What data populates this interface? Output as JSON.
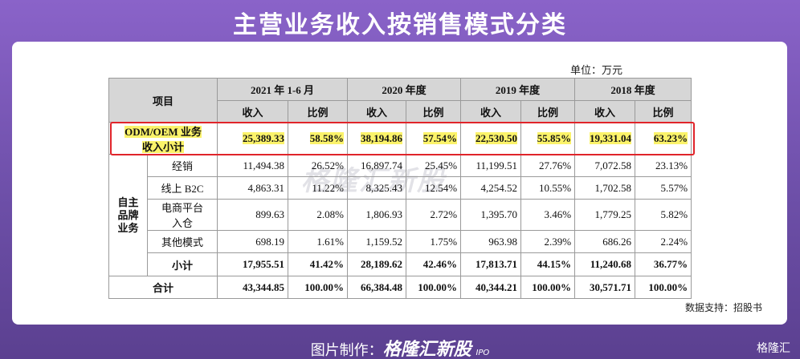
{
  "title": "主营业务收入按销售模式分类",
  "unit": "单位：万元",
  "table": {
    "item_header": "项目",
    "periods": [
      "2021 年 1-6 月",
      "2020 年度",
      "2019 年度",
      "2018 年度"
    ],
    "subheaders": [
      "收入",
      "比例",
      "收入",
      "比例",
      "收入",
      "比例",
      "收入",
      "比例"
    ],
    "odm_row": {
      "label_lines": [
        "ODM/OEM 业务",
        "收入小计"
      ],
      "cells": [
        "25,389.33",
        "58.58%",
        "38,194.86",
        "57.54%",
        "22,530.50",
        "55.85%",
        "19,331.04",
        "63.23%"
      ]
    },
    "brand_group": "自主品牌业务",
    "brand_rows": [
      {
        "label_lines": [
          "经销"
        ],
        "cells": [
          "11,494.38",
          "26.52%",
          "16,897.74",
          "25.45%",
          "11,199.51",
          "27.76%",
          "7,072.58",
          "23.13%"
        ]
      },
      {
        "label_lines": [
          "线上 B2C"
        ],
        "cells": [
          "4,863.31",
          "11.22%",
          "8,325.43",
          "12.54%",
          "4,254.52",
          "10.55%",
          "1,702.58",
          "5.57%"
        ]
      },
      {
        "label_lines": [
          "电商平台",
          "入仓"
        ],
        "cells": [
          "899.63",
          "2.08%",
          "1,806.93",
          "2.72%",
          "1,395.70",
          "3.46%",
          "1,779.25",
          "5.82%"
        ]
      },
      {
        "label_lines": [
          "其他模式"
        ],
        "cells": [
          "698.19",
          "1.61%",
          "1,159.52",
          "1.75%",
          "963.98",
          "2.39%",
          "686.26",
          "2.24%"
        ]
      },
      {
        "label_lines": [
          "小计"
        ],
        "cells": [
          "17,955.51",
          "41.42%",
          "28,189.62",
          "42.46%",
          "17,813.71",
          "44.15%",
          "11,240.68",
          "36.77%"
        ]
      }
    ],
    "total_row": {
      "label": "合计",
      "cells": [
        "43,344.85",
        "100.00%",
        "66,384.48",
        "100.00%",
        "40,344.21",
        "100.00%",
        "30,571.71",
        "100.00%"
      ]
    }
  },
  "source": "数据支持：招股书",
  "footer": {
    "prefix": "图片制作：",
    "brand": "格隆汇新股",
    "tag": "IPO"
  },
  "watermark": "格隆汇新股",
  "logo": "格隆汇"
}
